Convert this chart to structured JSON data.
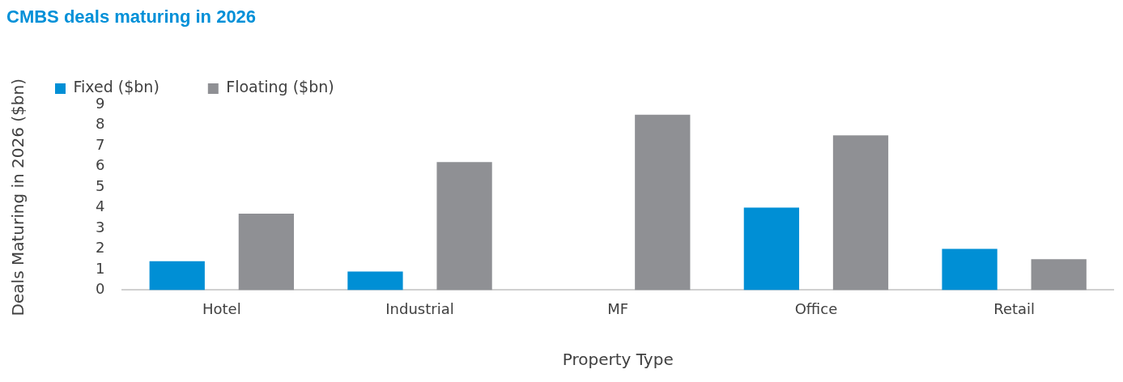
{
  "chart_data": {
    "type": "bar",
    "title": "CMBS deals maturing in 2026",
    "xlabel": "Property Type",
    "ylabel": "Deals Maturing in 2026 ($bn)",
    "categories": [
      "Hotel",
      "Industrial",
      "MF",
      "Office",
      "Retail"
    ],
    "series": [
      {
        "name": "Fixed ($bn)",
        "color": "#008fd5",
        "values": [
          1.4,
          0.9,
          0,
          4.0,
          2.0
        ]
      },
      {
        "name": "Floating ($bn)",
        "color": "#8f9094",
        "values": [
          3.7,
          6.2,
          8.5,
          7.5,
          1.5
        ]
      }
    ],
    "ylim": [
      0,
      9
    ],
    "yticks": [
      0,
      1,
      2,
      3,
      4,
      5,
      6,
      7,
      8,
      9
    ],
    "grid": false,
    "legend": "top left"
  }
}
